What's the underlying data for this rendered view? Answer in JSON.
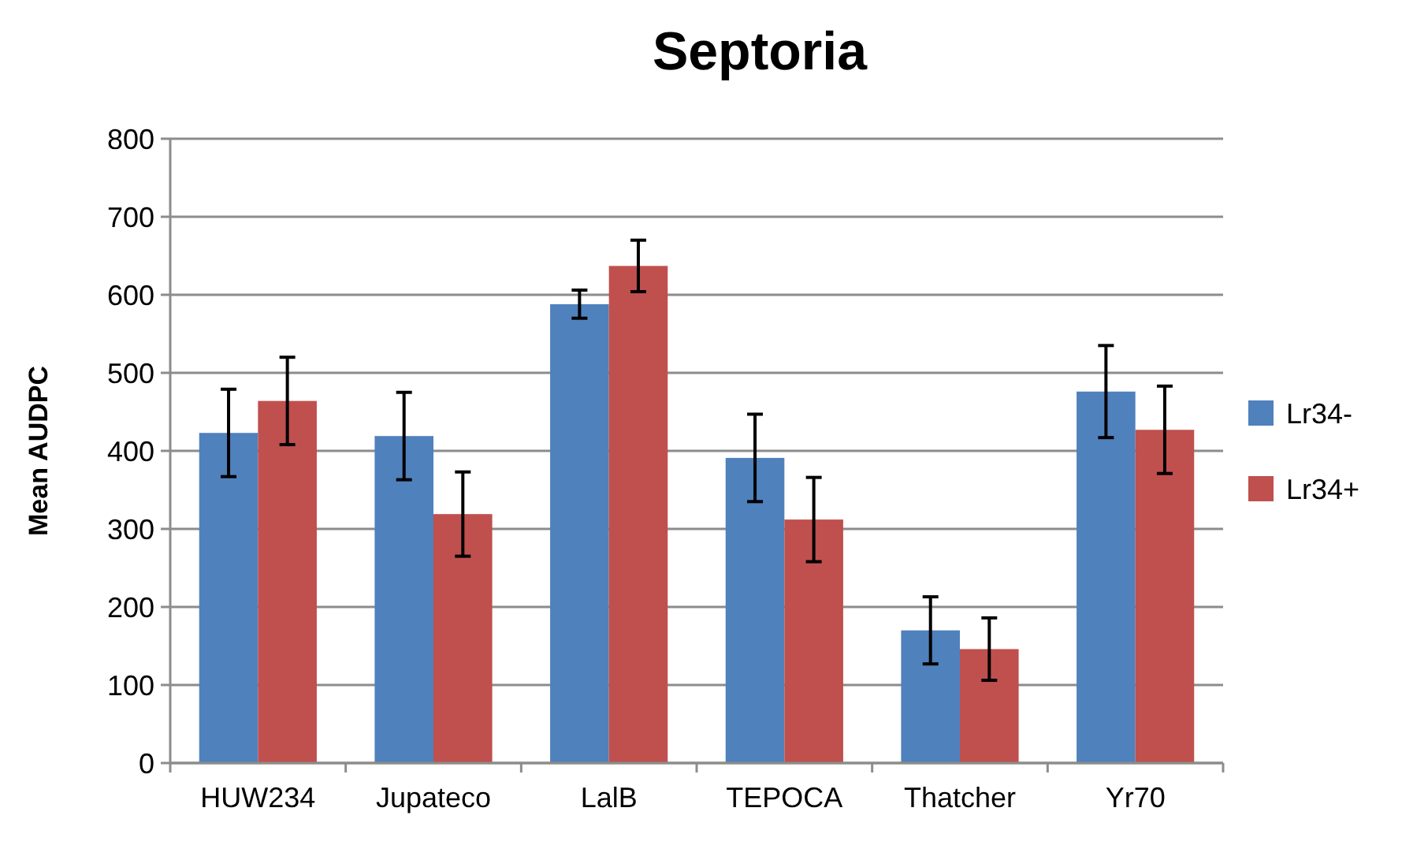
{
  "chart_data": {
    "type": "bar",
    "title": "Septoria",
    "ylabel": "Mean AUDPC",
    "categories": [
      "HUW234",
      "Jupateco",
      "LalB",
      "TEPOCA",
      "Thatcher",
      "Yr70"
    ],
    "series": [
      {
        "name": "Lr34-",
        "color": "#4f81bd",
        "values": [
          423,
          419,
          588,
          391,
          170,
          476
        ],
        "errors": [
          56,
          56,
          18,
          56,
          43,
          59
        ]
      },
      {
        "name": "Lr34+",
        "color": "#c0504d",
        "values": [
          464,
          319,
          637,
          312,
          146,
          427
        ],
        "errors": [
          56,
          54,
          33,
          54,
          40,
          56
        ]
      }
    ],
    "ylim": [
      0,
      800
    ],
    "yticks": [
      0,
      100,
      200,
      300,
      400,
      500,
      600,
      700,
      800
    ],
    "grid": "y",
    "legend": "right"
  }
}
